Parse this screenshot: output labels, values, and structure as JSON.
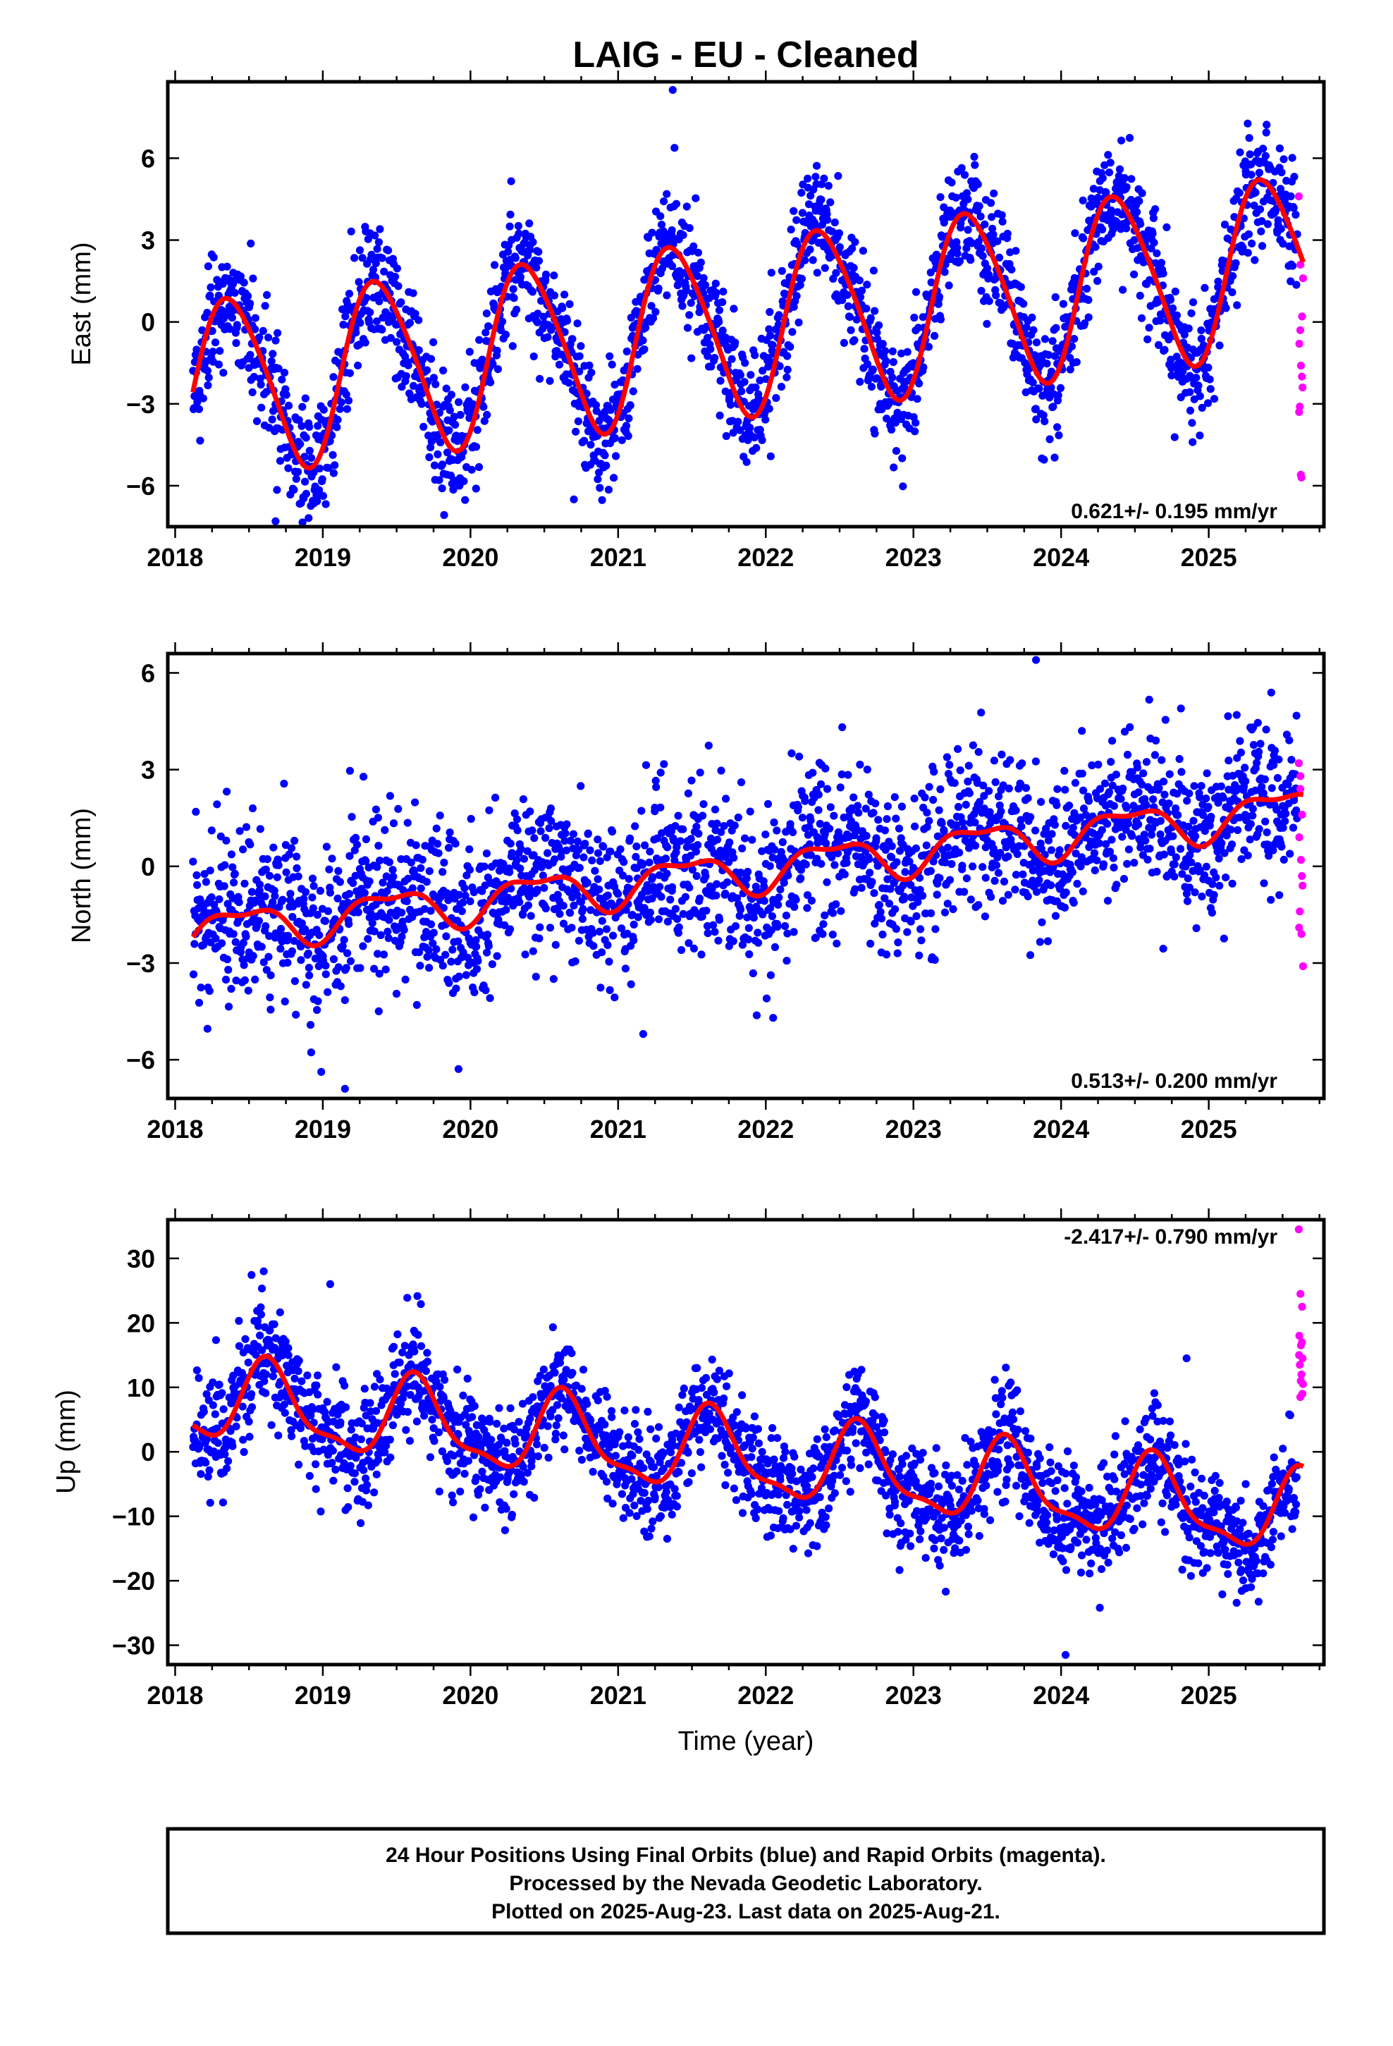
{
  "title": "LAIG  - EU - Cleaned",
  "colors": {
    "final": "#0000ff",
    "rapid": "#ff00ff",
    "model": "#ff0000",
    "frame": "#000000"
  },
  "chart_data": [
    {
      "type": "scatter",
      "component": "East",
      "ylabel": "East (mm)",
      "xlabel": "",
      "xlim": [
        2017.95,
        2025.78
      ],
      "ylim": [
        -7.5,
        8.8
      ],
      "yticks": [
        -6,
        -3,
        0,
        3,
        6
      ],
      "xticks": [
        2018,
        2019,
        2020,
        2021,
        2022,
        2023,
        2024,
        2025
      ],
      "rate_label": "0.621+/- 0.195 mm/yr",
      "model": {
        "rate": 0.621,
        "offset": -0.1,
        "annual_amp": 3.2,
        "annual_phase_peak": 0.38,
        "semiannual_amp": 0.4,
        "semiannual_phase_peak": 0.23
      },
      "scatter_sd": 1.1,
      "outliers": [
        [
          2021.37,
          8.5
        ],
        [
          2018.68,
          -7.3
        ],
        [
          2020.7,
          -6.5
        ],
        [
          2023.87,
          -5.0
        ]
      ],
      "rapid": {
        "x_range": [
          2025.61,
          2025.64
        ],
        "y": [
          4.6,
          2.1,
          0.2,
          -0.8,
          -1.6,
          -2.4,
          -3.1,
          -5.7,
          1.6,
          -0.3,
          -2.0,
          -3.3,
          -5.6
        ]
      },
      "series": [
        {
          "name": "Final Orbits",
          "color": "#0000ff"
        },
        {
          "name": "Rapid Orbits",
          "color": "#ff00ff"
        },
        {
          "name": "Model",
          "color": "#ff0000"
        }
      ]
    },
    {
      "type": "scatter",
      "component": "North",
      "ylabel": "North (mm)",
      "xlabel": "",
      "xlim": [
        2017.95,
        2025.78
      ],
      "ylim": [
        -7.2,
        6.6
      ],
      "yticks": [
        -6,
        -3,
        0,
        3,
        6
      ],
      "xticks": [
        2018,
        2019,
        2020,
        2021,
        2022,
        2023,
        2024,
        2025
      ],
      "rate_label": "0.513+/- 0.200 mm/yr",
      "model": {
        "rate": 0.513,
        "offset": -0.1,
        "annual_amp": 0.6,
        "annual_phase_peak": 0.45,
        "semiannual_amp": 0.25,
        "semiannual_phase_peak": 0.2
      },
      "scatter_sd": 1.25,
      "outliers": [
        [
          2023.83,
          6.4
        ],
        [
          2019.15,
          -6.9
        ],
        [
          2022.05,
          -4.7
        ],
        [
          2021.17,
          -5.2
        ]
      ],
      "rapid": {
        "x_range": [
          2025.61,
          2025.64
        ],
        "y": [
          3.2,
          2.8,
          1.6,
          0.9,
          0.2,
          -0.6,
          -1.4,
          -2.1,
          -3.1,
          2.4,
          -0.3,
          -1.9
        ]
      },
      "series": [
        {
          "name": "Final Orbits",
          "color": "#0000ff"
        },
        {
          "name": "Rapid Orbits",
          "color": "#ff00ff"
        },
        {
          "name": "Model",
          "color": "#ff0000"
        }
      ]
    },
    {
      "type": "scatter",
      "component": "Up",
      "ylabel": "Up (mm)",
      "xlabel": "Time (year)",
      "xlim": [
        2017.95,
        2025.78
      ],
      "ylim": [
        -33,
        36
      ],
      "yticks": [
        -30,
        -20,
        -10,
        0,
        10,
        20,
        30
      ],
      "xticks": [
        2018,
        2019,
        2020,
        2021,
        2022,
        2023,
        2024,
        2025
      ],
      "rate_label": "-2.417+/- 0.790 mm/yr",
      "model": {
        "rate": -2.417,
        "offset": -1.0,
        "annual_amp": 6.0,
        "annual_phase_peak": 0.64,
        "semiannual_amp": 2.0,
        "semiannual_phase_peak": 0.1
      },
      "scatter_sd": 4.3,
      "outliers": [
        [
          2024.03,
          -31.5
        ],
        [
          2018.6,
          28
        ],
        [
          2019.05,
          26
        ],
        [
          2024.85,
          14.5
        ]
      ],
      "rapid": {
        "x_range": [
          2025.61,
          2025.64
        ],
        "y": [
          34.5,
          24.5,
          22.5,
          18,
          16.5,
          14.5,
          13.5,
          12,
          10.5,
          8.5,
          17,
          15,
          11,
          9
        ]
      },
      "series": [
        {
          "name": "Final Orbits",
          "color": "#0000ff"
        },
        {
          "name": "Rapid Orbits",
          "color": "#ff00ff"
        },
        {
          "name": "Model",
          "color": "#ff0000"
        }
      ]
    }
  ],
  "footer": {
    "lines": [
      "24 Hour Positions Using Final Orbits (blue) and Rapid Orbits (magenta).",
      "Processed by the Nevada Geodetic Laboratory.",
      "Plotted on 2025-Aug-23. Last data on 2025-Aug-21."
    ]
  }
}
